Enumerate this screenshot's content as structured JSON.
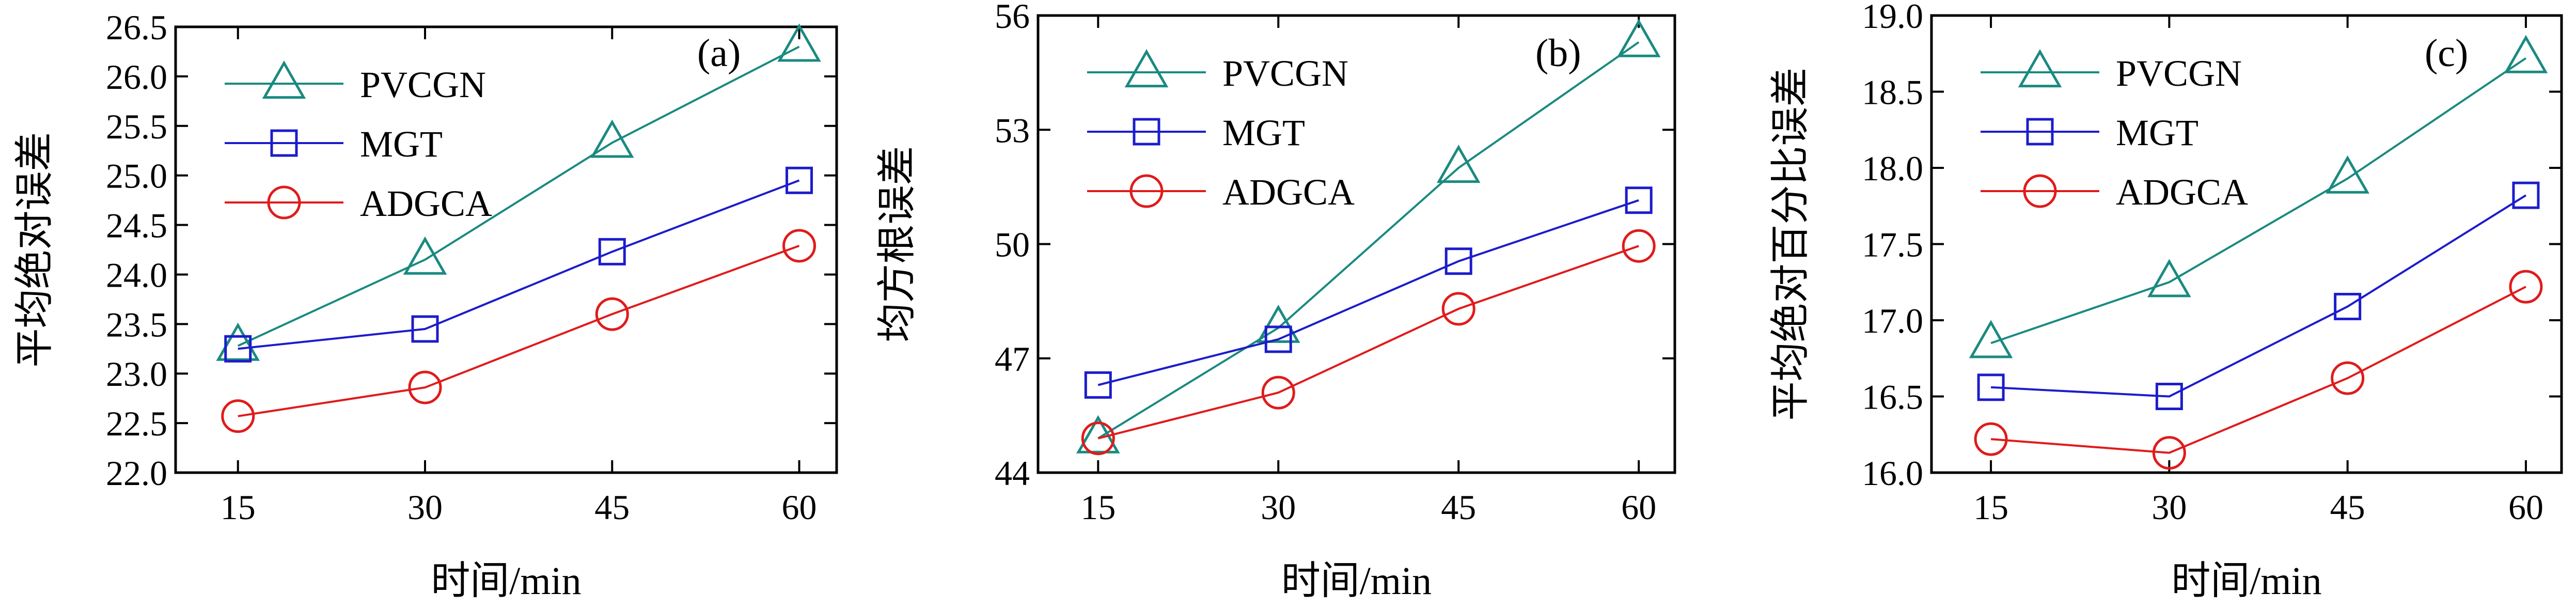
{
  "colors": {
    "PVCGN": "#1a8a80",
    "MGT": "#1c1ccc",
    "ADGCA": "#e01b1b",
    "axis": "#000000"
  },
  "chart_data": [
    {
      "type": "line",
      "panel_label": "(a)",
      "xlabel": "时间/min",
      "ylabel": "平均绝对误差",
      "categories": [
        "15",
        "30",
        "45",
        "60"
      ],
      "x": [
        15,
        30,
        45,
        60
      ],
      "xlim": [
        10,
        63
      ],
      "ylim": [
        22.0,
        26.5
      ],
      "yticks": [
        "22.0",
        "22.5",
        "23.0",
        "23.5",
        "24.0",
        "24.5",
        "25.0",
        "25.5",
        "26.0",
        "26.5"
      ],
      "legend_position": "top-left",
      "series": [
        {
          "name": "PVCGN",
          "marker": "triangle",
          "values": [
            23.28,
            24.15,
            25.33,
            26.3
          ]
        },
        {
          "name": "MGT",
          "marker": "square",
          "values": [
            23.25,
            23.45,
            24.23,
            24.95
          ]
        },
        {
          "name": "ADGCA",
          "marker": "circle",
          "values": [
            22.57,
            22.86,
            23.6,
            24.29
          ]
        }
      ]
    },
    {
      "type": "line",
      "panel_label": "(b)",
      "xlabel": "时间/min",
      "ylabel": "均方根误差",
      "categories": [
        "15",
        "30",
        "45",
        "60"
      ],
      "x": [
        15,
        30,
        45,
        60
      ],
      "xlim": [
        10,
        63
      ],
      "ylim": [
        44,
        56
      ],
      "yticks": [
        "44",
        "47",
        "50",
        "53",
        "56"
      ],
      "legend_position": "top-left",
      "series": [
        {
          "name": "PVCGN",
          "marker": "triangle",
          "values": [
            44.9,
            47.8,
            52.0,
            55.3
          ]
        },
        {
          "name": "MGT",
          "marker": "square",
          "values": [
            46.3,
            47.5,
            49.55,
            51.15
          ]
        },
        {
          "name": "ADGCA",
          "marker": "circle",
          "values": [
            44.9,
            46.1,
            48.3,
            49.95
          ]
        }
      ]
    },
    {
      "type": "line",
      "panel_label": "(c)",
      "xlabel": "时间/min",
      "ylabel": "平均绝对百分比误差",
      "categories": [
        "15",
        "30",
        "45",
        "60"
      ],
      "x": [
        15,
        30,
        45,
        60
      ],
      "xlim": [
        10,
        63
      ],
      "ylim": [
        16.0,
        19.0
      ],
      "yticks": [
        "16.0",
        "16.5",
        "17.0",
        "17.5",
        "18.0",
        "18.5",
        "19.0"
      ],
      "legend_position": "top-left",
      "series": [
        {
          "name": "PVCGN",
          "marker": "triangle",
          "values": [
            16.85,
            17.25,
            17.93,
            18.72
          ]
        },
        {
          "name": "MGT",
          "marker": "square",
          "values": [
            16.56,
            16.5,
            17.09,
            17.82
          ]
        },
        {
          "name": "ADGCA",
          "marker": "circle",
          "values": [
            16.22,
            16.13,
            16.62,
            17.22
          ]
        }
      ]
    }
  ]
}
